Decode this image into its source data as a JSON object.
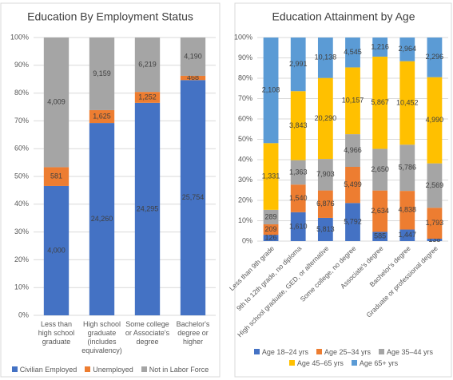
{
  "chart_data": [
    {
      "type": "bar",
      "stacking": "percent",
      "title": "Education By Employment Status",
      "categories": [
        "Less than high school graduate",
        "High school graduate (includes equivalency)",
        "Some college or Associate's degree",
        "Bachelor's degree or higher"
      ],
      "series": [
        {
          "name": "Civilian Employed",
          "color": "#4472c4",
          "values": [
            4000,
            24260,
            24295,
            25754
          ],
          "value_labels": [
            "4,000",
            "24,260",
            "24,295",
            "25,754"
          ]
        },
        {
          "name": "Unemployed",
          "color": "#ed7d31",
          "values": [
            581,
            1625,
            1252,
            468
          ],
          "value_labels": [
            "581",
            "1,625",
            "1,252",
            "468"
          ]
        },
        {
          "name": "Not in Labor Force",
          "color": "#a5a5a5",
          "values": [
            4009,
            9159,
            6219,
            4190
          ],
          "value_labels": [
            "4,009",
            "9,159",
            "6,219",
            "4,190"
          ]
        }
      ],
      "ylim": [
        0,
        100
      ],
      "yticks": [
        {
          "value": 0,
          "label": "0%"
        },
        {
          "value": 10,
          "label": "10%"
        },
        {
          "value": 20,
          "label": "20%"
        },
        {
          "value": 30,
          "label": "30%"
        },
        {
          "value": 40,
          "label": "40%"
        },
        {
          "value": 50,
          "label": "50%"
        },
        {
          "value": 60,
          "label": "60%"
        },
        {
          "value": 70,
          "label": "70%"
        },
        {
          "value": 80,
          "label": "80%"
        },
        {
          "value": 90,
          "label": "90%"
        },
        {
          "value": 100,
          "label": "100%"
        }
      ],
      "grid": true,
      "legend": "bottom"
    },
    {
      "type": "bar",
      "stacking": "percent",
      "title": "Education Attainment by Age",
      "categories": [
        "Less than 9th grade",
        "9th to 12th grade, no diploma",
        "High school graduate, GED, or alternative",
        "Some college, no degree",
        "Associate's degree",
        "Bachelor's degree",
        "Graduate or professional degree"
      ],
      "series": [
        {
          "name": "Age 18–24 yrs",
          "color": "#4472c4",
          "values": [
            126,
            1610,
            5813,
            5792,
            585,
            1447,
            138
          ],
          "value_labels": [
            "126",
            "1,610",
            "5,813",
            "5,792",
            "585",
            "1,447",
            "138"
          ]
        },
        {
          "name": "Age 25–34 yrs",
          "color": "#ed7d31",
          "values": [
            209,
            1540,
            6876,
            5499,
            2634,
            4838,
            1793
          ],
          "value_labels": [
            "209",
            "1,540",
            "6,876",
            "5,499",
            "2,634",
            "4,838",
            "1,793"
          ]
        },
        {
          "name": "Age 35–44 yrs",
          "color": "#a5a5a5",
          "values": [
            289,
            1363,
            7903,
            4966,
            2650,
            5786,
            2569
          ],
          "value_labels": [
            "289",
            "1,363",
            "7,903",
            "4,966",
            "2,650",
            "5,786",
            "2,569"
          ]
        },
        {
          "name": "Age 45–65 yrs",
          "color": "#ffc000",
          "values": [
            1331,
            3843,
            20290,
            10157,
            5867,
            10452,
            4990
          ],
          "value_labels": [
            "1,331",
            "3,843",
            "20,290",
            "10,157",
            "5,867",
            "10,452",
            "4,990"
          ]
        },
        {
          "name": "Age 65+ yrs",
          "color": "#5b9bd5",
          "values": [
            2108,
            2991,
            10138,
            4545,
            1216,
            2964,
            2296
          ],
          "value_labels": [
            "2,108",
            "2,991",
            "10,138",
            "4,545",
            "1,216",
            "2,964",
            "2,296"
          ]
        }
      ],
      "ylim": [
        0,
        100
      ],
      "yticks": [
        {
          "value": 0,
          "label": "0%"
        },
        {
          "value": 10,
          "label": "10%"
        },
        {
          "value": 20,
          "label": "20%"
        },
        {
          "value": 30,
          "label": "30%"
        },
        {
          "value": 40,
          "label": "40%"
        },
        {
          "value": 50,
          "label": "50%"
        },
        {
          "value": 60,
          "label": "60%"
        },
        {
          "value": 70,
          "label": "70%"
        },
        {
          "value": 80,
          "label": "80%"
        },
        {
          "value": 90,
          "label": "90%"
        },
        {
          "value": 100,
          "label": "100%"
        }
      ],
      "grid": true,
      "legend": "bottom"
    }
  ]
}
